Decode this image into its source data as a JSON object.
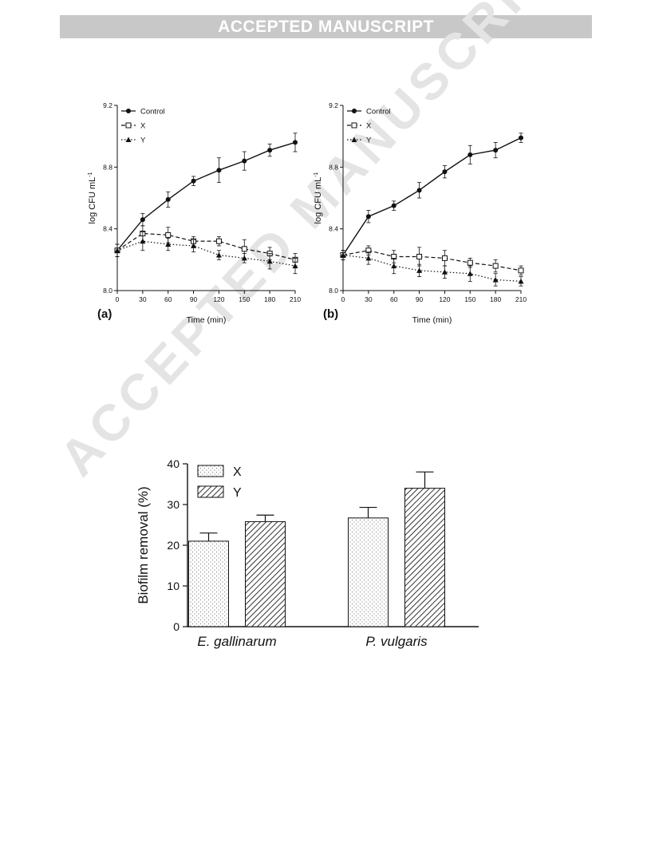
{
  "banner": "ACCEPTED MANUSCRIPT",
  "watermark": "ACCEPTED MANUSCRIPT",
  "chart_data": [
    {
      "type": "line",
      "panel_label": "(a)",
      "xlabel": "Time (min)",
      "ylabel": "log CFU mL",
      "ylabel_sup": "-1",
      "x": [
        0,
        30,
        60,
        90,
        120,
        150,
        180,
        210
      ],
      "xticks": [
        0,
        30,
        60,
        90,
        120,
        150,
        180,
        210
      ],
      "yticks": [
        "8.0",
        "8.4",
        "8.8",
        "9.2"
      ],
      "xlim": [
        0,
        210
      ],
      "ylim": [
        8.0,
        9.2
      ],
      "grid": false,
      "legend": "top-left",
      "series": [
        {
          "name": "Control",
          "marker": "filled-circle",
          "line": "solid",
          "values": [
            8.26,
            8.46,
            8.59,
            8.71,
            8.78,
            8.84,
            8.91,
            8.96
          ],
          "errors": [
            0.04,
            0.04,
            0.05,
            0.03,
            0.08,
            0.06,
            0.04,
            0.06
          ]
        },
        {
          "name": "X",
          "marker": "open-square",
          "line": "dashed",
          "values": [
            8.26,
            8.37,
            8.36,
            8.32,
            8.32,
            8.27,
            8.24,
            8.2
          ],
          "errors": [
            0.04,
            0.05,
            0.05,
            0.03,
            0.03,
            0.06,
            0.04,
            0.04
          ]
        },
        {
          "name": "Y",
          "marker": "filled-triangle",
          "line": "dotted",
          "values": [
            8.26,
            8.32,
            8.3,
            8.29,
            8.23,
            8.21,
            8.19,
            8.16
          ],
          "errors": [
            0.04,
            0.06,
            0.04,
            0.04,
            0.03,
            0.03,
            0.05,
            0.05
          ]
        }
      ]
    },
    {
      "type": "line",
      "panel_label": "(b)",
      "xlabel": "Time (min)",
      "ylabel": "log CFU mL",
      "ylabel_sup": "-1",
      "x": [
        0,
        30,
        60,
        90,
        120,
        150,
        180,
        210
      ],
      "xticks": [
        0,
        30,
        60,
        90,
        120,
        150,
        180,
        210
      ],
      "yticks": [
        "8.0",
        "8.4",
        "8.8",
        "9.2"
      ],
      "xlim": [
        0,
        210
      ],
      "ylim": [
        8.0,
        9.2
      ],
      "grid": false,
      "legend": "top-left",
      "series": [
        {
          "name": "Control",
          "marker": "filled-circle",
          "line": "solid",
          "values": [
            8.23,
            8.48,
            8.55,
            8.65,
            8.77,
            8.88,
            8.91,
            8.99
          ],
          "errors": [
            0.03,
            0.04,
            0.03,
            0.05,
            0.04,
            0.06,
            0.05,
            0.03
          ]
        },
        {
          "name": "X",
          "marker": "open-square",
          "line": "dashed",
          "values": [
            8.23,
            8.26,
            8.22,
            8.22,
            8.21,
            8.18,
            8.16,
            8.13
          ],
          "errors": [
            0.03,
            0.03,
            0.04,
            0.06,
            0.05,
            0.03,
            0.04,
            0.03
          ]
        },
        {
          "name": "Y",
          "marker": "filled-triangle",
          "line": "dotted",
          "values": [
            8.23,
            8.21,
            8.16,
            8.13,
            8.12,
            8.11,
            8.07,
            8.06
          ],
          "errors": [
            0.03,
            0.04,
            0.05,
            0.04,
            0.04,
            0.05,
            0.04,
            0.03
          ]
        }
      ]
    },
    {
      "type": "bar",
      "categories": [
        "E. gallinarum",
        "P. vulgaris"
      ],
      "ylabel": "Biofilm removal (%)",
      "yticks": [
        0,
        10,
        20,
        30,
        40
      ],
      "ylim": [
        0,
        40
      ],
      "grid": false,
      "legend": "top-left",
      "series": [
        {
          "name": "X",
          "pattern": "dotted",
          "values": [
            21.0,
            26.7
          ],
          "errors": [
            2.0,
            2.6
          ]
        },
        {
          "name": "Y",
          "pattern": "hatched",
          "values": [
            25.8,
            34.0
          ],
          "errors": [
            1.6,
            4.0
          ]
        }
      ]
    }
  ]
}
